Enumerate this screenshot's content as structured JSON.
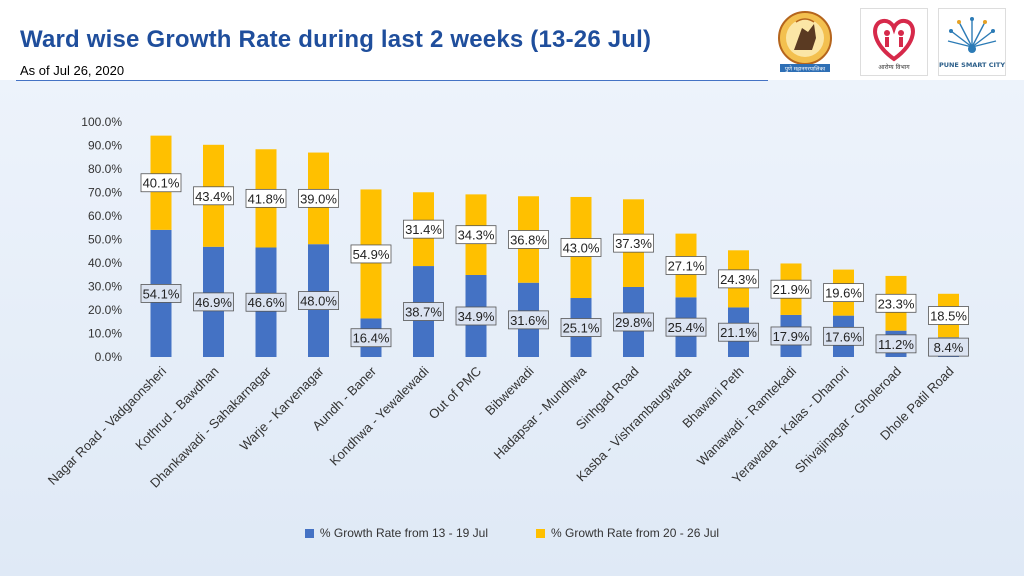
{
  "header": {
    "title": "Ward wise Growth Rate during last 2 weeks (13-26 Jul)",
    "subtitle": "As of Jul 26, 2020"
  },
  "logos": [
    {
      "name": "pmc-emblem",
      "text": "पुणे महानगरपालिका"
    },
    {
      "name": "health-dept-emblem",
      "text": "आरोग्य विभाग"
    },
    {
      "name": "pune-smart-city-logo",
      "text": "PUNE SMART CITY"
    }
  ],
  "colors": {
    "week1": "#4472c4",
    "week2": "#ffc000",
    "title": "#1f4e9c"
  },
  "chart_data": {
    "type": "bar",
    "stacked": true,
    "categories": [
      "Nagar Road - Vadgaonsheri",
      "Kothrud - Bawdhan",
      "Dhankawadi - Sahakarnagar",
      "Warje - Karvenagar",
      "Aundh - Baner",
      "Kondhwa - Yewalewadi",
      "Out of PMC",
      "Bibwewadi",
      "Hadapsar - Mundhwa",
      "Sinhgad Road",
      "Kasba - Vishrambaugwada",
      "Bhawani Peth",
      "Wanawadi - Ramtekadi",
      "Yerawada - Kalas - Dhanori",
      "Shivajinagar - Gholeroad",
      "Dhole Patil Road"
    ],
    "series": [
      {
        "name": "% Growth Rate from 13 - 19 Jul",
        "values": [
          54.1,
          46.9,
          46.6,
          48.0,
          16.4,
          38.7,
          34.9,
          31.6,
          25.1,
          29.8,
          25.4,
          21.1,
          17.9,
          17.6,
          11.2,
          8.4
        ],
        "labels": [
          "54.1%",
          "46.9%",
          "46.6%",
          "48.0%",
          "16.4%",
          "38.7%",
          "34.9%",
          "31.6%",
          "25.1%",
          "29.8%",
          "25.4%",
          "21.1%",
          "17.9%",
          "17.6%",
          "11.2%",
          "8.4%"
        ]
      },
      {
        "name": "% Growth Rate from 20 - 26 Jul",
        "values": [
          40.1,
          43.4,
          41.8,
          39.0,
          54.9,
          31.4,
          34.3,
          36.8,
          43.0,
          37.3,
          27.1,
          24.3,
          21.9,
          19.6,
          23.3,
          18.5
        ],
        "labels": [
          "40.1%",
          "43.4%",
          "41.8%",
          "39.0%",
          "54.9%",
          "31.4%",
          "34.3%",
          "36.8%",
          "43.0%",
          "37.3%",
          "27.1%",
          "24.3%",
          "21.9%",
          "19.6%",
          "23.3%",
          "18.5%"
        ]
      }
    ],
    "ylim": [
      0,
      100
    ],
    "yticks": [
      "0.0%",
      "10.0%",
      "20.0%",
      "30.0%",
      "40.0%",
      "50.0%",
      "60.0%",
      "70.0%",
      "80.0%",
      "90.0%",
      "100.0%"
    ],
    "xlabel": "",
    "ylabel": "",
    "grid": false,
    "legend_position": "bottom"
  }
}
